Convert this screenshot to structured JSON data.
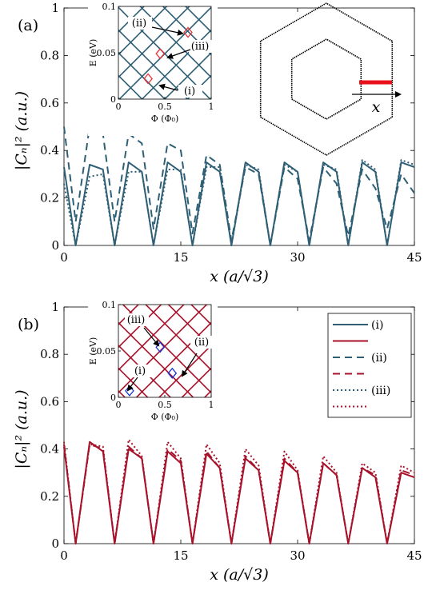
{
  "colors": {
    "panel_a": "#2e5f75",
    "panel_b": "#a8122a",
    "marker_a": "#e8303a",
    "marker_b": "#1a2fd6",
    "axes": "#000000"
  },
  "chart_data": [
    {
      "type": "line",
      "panel_label": "(a)",
      "xlabel": "x (a/√3)",
      "ylabel": "|Cₙ|² (a.u.)",
      "xlim": [
        0,
        45
      ],
      "ylim": [
        0,
        1
      ],
      "xticks": [
        "0",
        "15",
        "30",
        "45"
      ],
      "yticks": [
        "0",
        "0.2",
        "0.4",
        "0.6",
        "0.8",
        "1"
      ],
      "series": [
        {
          "name": "(i)",
          "style": "solid",
          "x": [
            0,
            1.5,
            3.3,
            5,
            6.5,
            8.3,
            10,
            11.5,
            13.3,
            15,
            16.5,
            18.3,
            20,
            21.5,
            23.3,
            25,
            26.5,
            28.3,
            30,
            31.5,
            33.3,
            35,
            36.5,
            38.3,
            40,
            41.5,
            43.3,
            45
          ],
          "y": [
            0.33,
            0,
            0.34,
            0.32,
            0,
            0.35,
            0.31,
            0,
            0.35,
            0.31,
            0,
            0.35,
            0.31,
            0,
            0.35,
            0.31,
            0,
            0.35,
            0.31,
            0,
            0.35,
            0.31,
            0,
            0.35,
            0.31,
            0,
            0.35,
            0.33
          ]
        },
        {
          "name": "(ii)",
          "style": "dashed",
          "x": [
            0,
            1.5,
            3.3,
            5,
            6.5,
            8.3,
            10,
            11.5,
            13.3,
            15,
            16.5,
            18.3,
            20,
            21.5,
            23.3,
            25,
            26.5,
            28.3,
            30,
            31.5,
            33.3,
            35,
            36.5,
            38.3,
            40,
            41.5,
            43.3,
            45
          ],
          "y": [
            0.5,
            0.1,
            0.5,
            0.47,
            0.1,
            0.47,
            0.43,
            0.07,
            0.43,
            0.4,
            0.05,
            0.38,
            0.34,
            0.02,
            0.33,
            0.3,
            0,
            0.33,
            0.28,
            0.02,
            0.33,
            0.26,
            0.04,
            0.32,
            0.24,
            0.07,
            0.3,
            0.22
          ]
        },
        {
          "name": "(iii)",
          "style": "dotted",
          "x": [
            0,
            1.5,
            3.3,
            5,
            6.5,
            8.3,
            10,
            11.5,
            13.3,
            15,
            16.5,
            18.3,
            20,
            21.5,
            23.3,
            25,
            26.5,
            28.3,
            30,
            31.5,
            33.3,
            35,
            36.5,
            38.3,
            40,
            41.5,
            43.3,
            45
          ],
          "y": [
            0.26,
            0,
            0.29,
            0.3,
            0,
            0.31,
            0.31,
            0,
            0.32,
            0.32,
            0,
            0.33,
            0.33,
            0,
            0.34,
            0.32,
            0,
            0.34,
            0.31,
            0,
            0.34,
            0.32,
            0,
            0.36,
            0.32,
            0,
            0.36,
            0.34
          ]
        }
      ]
    },
    {
      "type": "line",
      "panel_label": "(b)",
      "xlabel": "x (a/√3)",
      "ylabel": "|Cₙ|² (a.u.)",
      "xlim": [
        0,
        45
      ],
      "ylim": [
        0,
        1
      ],
      "xticks": [
        "0",
        "15",
        "30",
        "45"
      ],
      "yticks": [
        "0",
        "0.2",
        "0.4",
        "0.6",
        "0.8",
        "1"
      ],
      "series": [
        {
          "name": "(i)",
          "style": "solid",
          "x": [
            0,
            1.5,
            3.3,
            5,
            6.5,
            8.3,
            10,
            11.5,
            13.3,
            15,
            16.5,
            18.3,
            20,
            21.5,
            23.3,
            25,
            26.5,
            28.3,
            30,
            31.5,
            33.3,
            35,
            36.5,
            38.3,
            40,
            41.5,
            43.3,
            45
          ],
          "y": [
            0.41,
            0,
            0.43,
            0.39,
            0,
            0.4,
            0.36,
            0,
            0.39,
            0.34,
            0,
            0.38,
            0.32,
            0,
            0.36,
            0.31,
            0,
            0.35,
            0.3,
            0,
            0.34,
            0.29,
            0,
            0.32,
            0.28,
            0,
            0.3,
            0.28
          ]
        },
        {
          "name": "(ii)",
          "style": "dashed",
          "x": [
            0,
            1.5,
            3.3,
            5,
            6.5,
            8.3,
            10,
            11.5,
            13.3,
            15,
            16.5,
            18.3,
            20,
            21.5,
            23.3,
            25,
            26.5,
            28.3,
            30,
            31.5,
            33.3,
            35,
            36.5,
            38.3,
            40,
            41.5,
            43.3,
            45
          ],
          "y": [
            0.42,
            0,
            0.42,
            0.4,
            0,
            0.41,
            0.36,
            0,
            0.4,
            0.35,
            0,
            0.39,
            0.32,
            0,
            0.37,
            0.31,
            0,
            0.36,
            0.3,
            0,
            0.34,
            0.29,
            0,
            0.32,
            0.29,
            0,
            0.31,
            0.29
          ]
        },
        {
          "name": "(iii)",
          "style": "dotted",
          "x": [
            0,
            1.5,
            3.3,
            5,
            6.5,
            8.3,
            10,
            11.5,
            13.3,
            15,
            16.5,
            18.3,
            20,
            21.5,
            23.3,
            25,
            26.5,
            28.3,
            30,
            31.5,
            33.3,
            35,
            36.5,
            38.3,
            40,
            41.5,
            43.3,
            45
          ],
          "y": [
            0.43,
            0,
            0.42,
            0.41,
            0,
            0.44,
            0.37,
            0,
            0.43,
            0.36,
            0,
            0.42,
            0.34,
            0,
            0.4,
            0.33,
            0,
            0.39,
            0.31,
            0,
            0.37,
            0.3,
            0,
            0.34,
            0.3,
            0,
            0.33,
            0.3
          ]
        }
      ]
    }
  ],
  "insets": [
    {
      "xlabel": "Φ (Φ₀)",
      "ylabel": "E (eV)",
      "xlim": [
        0,
        1
      ],
      "ylim": [
        0,
        0.1
      ],
      "xticks": [
        "0",
        "0.5",
        "1"
      ],
      "yticks": [
        "0",
        "0.05",
        "0.1"
      ],
      "annotations": [
        "(i)",
        "(ii)",
        "(iii)"
      ],
      "markers": [
        {
          "x": 0.32,
          "y": 0.022
        },
        {
          "x": 0.75,
          "y": 0.072
        },
        {
          "x": 0.45,
          "y": 0.049
        }
      ]
    },
    {
      "xlabel": "Φ (Φ₀)",
      "ylabel": "E (eV)",
      "xlim": [
        0,
        1
      ],
      "ylim": [
        0,
        0.1
      ],
      "xticks": [
        "0",
        "0.5",
        "1"
      ],
      "yticks": [
        "0",
        "0.05",
        "0.1"
      ],
      "annotations": [
        "(i)",
        "(ii)",
        "(iii)"
      ],
      "markers": [
        {
          "x": 0.12,
          "y": 0.007
        },
        {
          "x": 0.58,
          "y": 0.026
        },
        {
          "x": 0.45,
          "y": 0.054
        }
      ]
    }
  ],
  "schematic": {
    "axis_label": "x"
  },
  "legend": {
    "entries": [
      "(i)",
      "",
      "(ii)",
      "",
      "(iii)",
      ""
    ]
  }
}
